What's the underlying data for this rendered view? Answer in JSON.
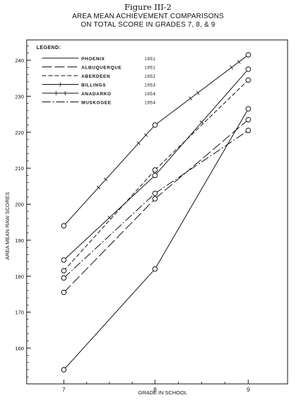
{
  "figure_label": "Figure III-2",
  "title_line1": "AREA MEAN ACHIEVEMENT COMPARISONS",
  "title_line2": "ON TOTAL SCORE IN GRADES 7, 8, & 9",
  "chart_data": {
    "type": "line",
    "title": "AREA MEAN ACHIEVEMENT COMPARISONS ON TOTAL SCORE IN GRADES 7, 8, & 9",
    "xlabel": "GRADE IN SCHOOL",
    "ylabel": "AREA MEAN RAW SCORES",
    "categories": [
      "7",
      "8",
      "9"
    ],
    "yticks": [
      160,
      170,
      180,
      190,
      200,
      210,
      220,
      230,
      240
    ],
    "ylim": [
      150,
      245
    ],
    "legend_title": "LEGEND:",
    "legend_position": "top-left",
    "grid": false,
    "series": [
      {
        "name": "PHOENIX",
        "year": "1951",
        "style": "solid",
        "values": [
          154,
          182,
          226.5
        ]
      },
      {
        "name": "ALBUQUERQUE",
        "year": "1951",
        "style": "longdash",
        "values": [
          175.5,
          201.5,
          223.5
        ]
      },
      {
        "name": "ABERDEEN",
        "year": "1952",
        "style": "dash",
        "values": [
          181.5,
          209.5,
          234.5
        ]
      },
      {
        "name": "BILLINGS",
        "year": "1953",
        "style": "crossed",
        "values": [
          184.5,
          208,
          237.5
        ]
      },
      {
        "name": "ANADARKO",
        "year": "1954",
        "style": "doublecross",
        "values": [
          194,
          222,
          241.5
        ]
      },
      {
        "name": "MUSKOGEE",
        "year": "1954",
        "style": "dashdot",
        "values": [
          179.5,
          203,
          220.5
        ]
      }
    ]
  }
}
